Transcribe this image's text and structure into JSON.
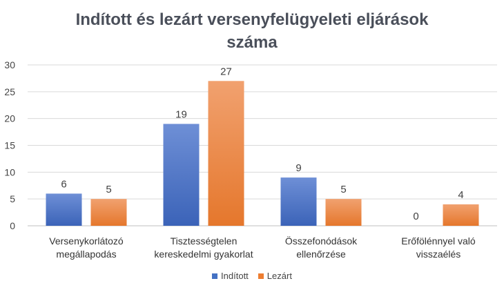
{
  "title_line1": "Indított és lezárt versenyfelügyeleti eljárások",
  "title_line2": "száma",
  "chart_data": {
    "type": "bar",
    "categories": [
      [
        "Versenykorlátozó",
        "megállapodás"
      ],
      [
        "Tisztességtelen",
        "kereskedelmi gyakorlat"
      ],
      [
        "Összefonódások",
        "ellenőrzése"
      ],
      [
        "Erőfölénnyel való",
        "visszaélés"
      ]
    ],
    "series": [
      {
        "name": "Indított",
        "values": [
          6,
          19,
          9,
          0
        ],
        "color": "#4472c4"
      },
      {
        "name": "Lezárt",
        "values": [
          5,
          27,
          5,
          4
        ],
        "color": "#ed7d31"
      }
    ],
    "ylim": [
      0,
      30
    ],
    "yticks": [
      0,
      5,
      10,
      15,
      20,
      25,
      30
    ],
    "grid": true,
    "legend": "bottom"
  }
}
